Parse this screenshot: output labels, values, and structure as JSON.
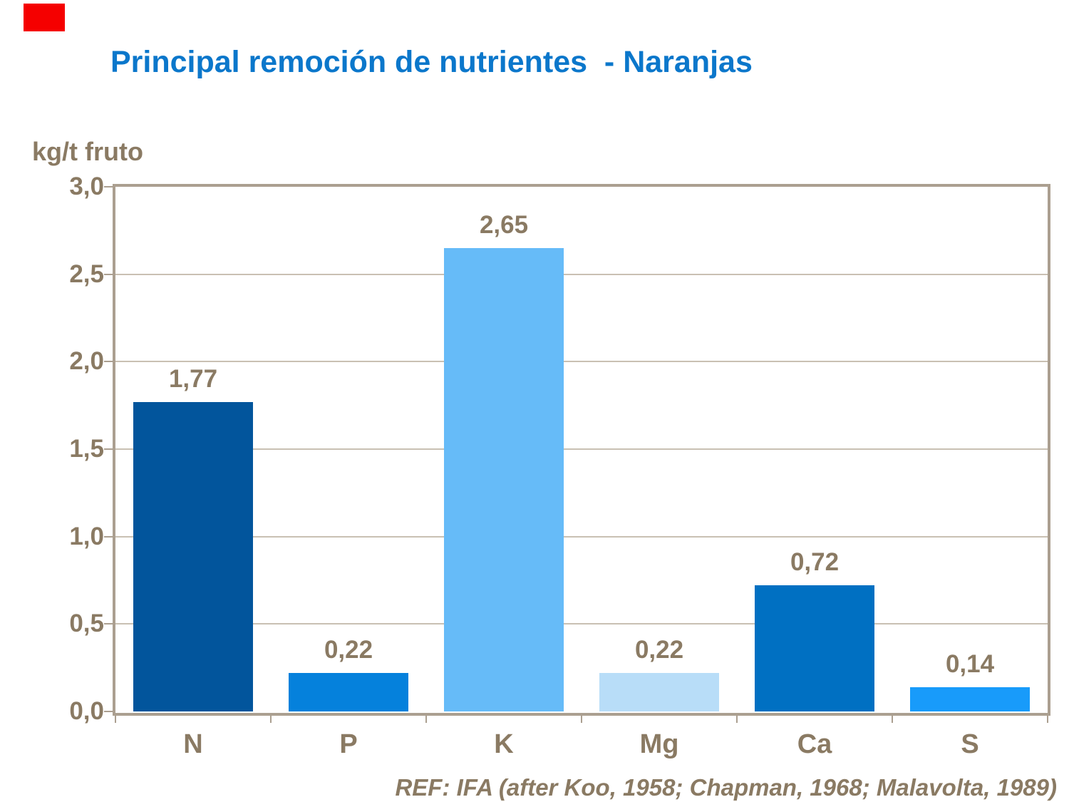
{
  "slide": {
    "corner_mark_color": "#F50000",
    "footer": "REF: IFA (after Koo, 1958; Chapman, 1968; Malavolta, 1989)"
  },
  "chart_data": {
    "type": "bar",
    "title": "Principal remoción de nutrientes  - Naranjas",
    "ylabel": "kg/t fruto",
    "xlabel": "",
    "categories": [
      "N",
      "P",
      "K",
      "Mg",
      "Ca",
      "S"
    ],
    "values": [
      1.77,
      0.22,
      2.65,
      0.22,
      0.72,
      0.14
    ],
    "value_labels": [
      "1,77",
      "0,22",
      "2,65",
      "0,22",
      "0,72",
      "0,14"
    ],
    "bar_colors": [
      "#02559C",
      "#0581DC",
      "#66BBF8",
      "#B8DDF8",
      "#0070C2",
      "#189BFA"
    ],
    "ylim": [
      0,
      3
    ],
    "ytick_step": 0.5,
    "ytick_labels": [
      "0,0",
      "0,5",
      "1,0",
      "1,5",
      "2,0",
      "2,5",
      "3,0"
    ],
    "grid": true,
    "legend_position": "none",
    "colors": {
      "title": "#0B77CB",
      "text": "#8A7A63",
      "axis_frame": "#AB9F90",
      "gridline": "#C9C0B3",
      "background": "#FFFFFF"
    }
  }
}
